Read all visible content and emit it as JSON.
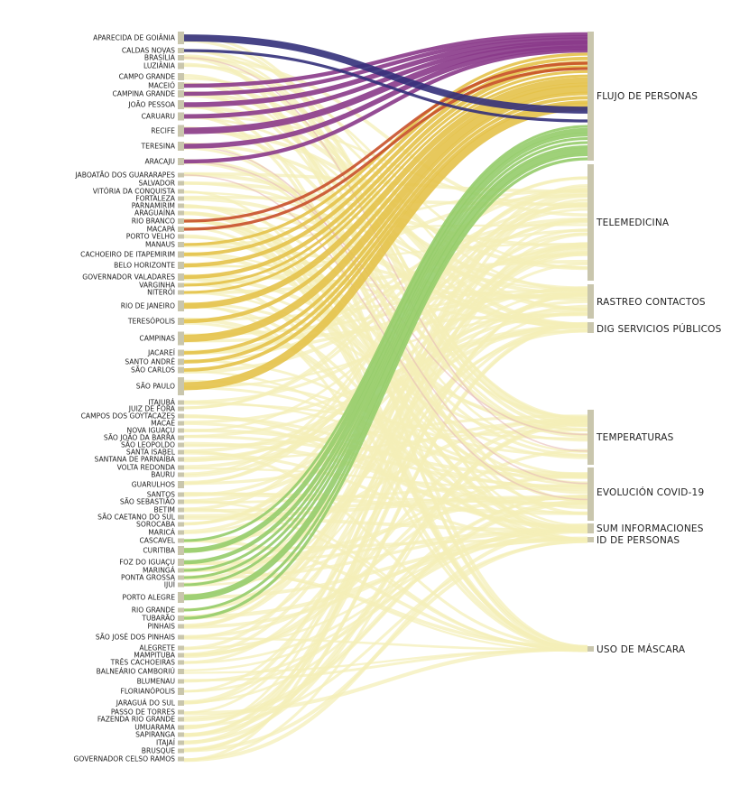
{
  "sources": [
    "APARECIDA DE GOIÂNIA",
    "CALDAS NOVAS",
    "BRASÍLIA",
    "LUZIÂNIA",
    "CAMPO GRANDE",
    "MACEIÓ",
    "CAMPINA GRANDE",
    "JOÃO PESSOA",
    "CARUARU",
    "RECIFE",
    "TERESINA",
    "ARACAJU",
    "JABOATÃO DOS GUARARAPES",
    "SALVADOR",
    "VITÓRIA DA CONQUISTA",
    "FORTALEZA",
    "PARNAMIRIM",
    "ARAGUAÍNA",
    "RIO BRANCO",
    "MACAPÁ",
    "PORTO VELHO",
    "MANAUS",
    "CACHOEIRO DE ITAPEMIRIM",
    "BELO HORIZONTE",
    "GOVERNADOR VALADARES",
    "VARGINHA",
    "NITERÓI",
    "RIO DE JANEIRO",
    "TERESÓPOLIS",
    "CAMPINAS",
    "JACAREÍ",
    "SANTO ANDRÉ",
    "SÃO CARLOS",
    "SÃO PAULO",
    "ITAJUBÁ",
    "JUIZ DE FORA",
    "CAMPOS DOS GOYTACAZES",
    "MACAÉ",
    "NOVA IGUAÇU",
    "SÃO JOÃO DA BARRA",
    "SÃO LEOPOLDO",
    "SANTA ISABEL",
    "SANTANA DE PARNAÍBA",
    "VOLTA REDONDA",
    "BAURU",
    "GUARULHOS",
    "SANTOS",
    "SÃO SEBASTIÃO",
    "BETIM",
    "SÃO CAETANO DO SUL",
    "SOROCABA",
    "MARICÁ",
    "CASCAVEL",
    "CURITIBA",
    "FOZ DO IGUAÇU",
    "MARINGÁ",
    "PONTA GROSSA",
    "IJUÍ",
    "PORTO ALEGRE",
    "RIO GRANDE",
    "TUBARÃO",
    "PINHAIS",
    "SÃO JOSÉ DOS PINHAIS",
    "ALEGRETE",
    "MAMPITUBA",
    "TRÊS CACHOEIRAS",
    "BALNEÁRIO CAMBORIÚ",
    "BLUMENAU",
    "FLORIANÓPOLIS",
    "JARAGUÁ DO SUL",
    "PASSO DE TORRES",
    "FAZENDA RIO GRANDE",
    "UMUARAMA",
    "SAPIRANGA",
    "ITAJAÍ",
    "BRUSQUE",
    "GOVERNADOR CELSO RAMOS"
  ],
  "targets": [
    "FLUJO DE PERSONAS",
    "TELEMEDICINA",
    "RASTREO CONTACTOS",
    "DIG SERVICIOS PÚBLICOS",
    "TEMPERATURAS",
    "EVOLUCIÓN COVID-19",
    "SUM INFORMACIONES",
    "ID DE PERSONAS",
    "USO DE MÁSCARA"
  ],
  "colors": {
    "node": "#c9c6ad",
    "navy": "#33307a",
    "purple": "#8a3a8a",
    "red": "#c8502a",
    "yellow": "#e4c24a",
    "green": "#95cc6a",
    "faint": "#f4efb8",
    "faint_red": "#e6b9b5"
  },
  "highlight_flows": [
    {
      "from": "APARECIDA DE GOIÂNIA",
      "to": "FLUJO DE PERSONAS",
      "color": "navy"
    },
    {
      "from": "CALDAS NOVAS",
      "to": "FLUJO DE PERSONAS",
      "color": "navy"
    },
    {
      "from": "MACEIÓ",
      "to": "FLUJO DE PERSONAS",
      "color": "purple"
    },
    {
      "from": "CAMPINA GRANDE",
      "to": "FLUJO DE PERSONAS",
      "color": "purple"
    },
    {
      "from": "JOÃO PESSOA",
      "to": "FLUJO DE PERSONAS",
      "color": "purple"
    },
    {
      "from": "CARUARU",
      "to": "FLUJO DE PERSONAS",
      "color": "purple"
    },
    {
      "from": "RECIFE",
      "to": "FLUJO DE PERSONAS",
      "color": "purple"
    },
    {
      "from": "TERESINA",
      "to": "FLUJO DE PERSONAS",
      "color": "purple"
    },
    {
      "from": "ARACAJU",
      "to": "FLUJO DE PERSONAS",
      "color": "purple"
    },
    {
      "from": "RIO BRANCO",
      "to": "FLUJO DE PERSONAS",
      "color": "red"
    },
    {
      "from": "MACAPÁ",
      "to": "FLUJO DE PERSONAS",
      "color": "red"
    },
    {
      "from": "MANAUS",
      "to": "FLUJO DE PERSONAS",
      "color": "yellow"
    },
    {
      "from": "CACHOEIRO DE ITAPEMIRIM",
      "to": "FLUJO DE PERSONAS",
      "color": "yellow"
    },
    {
      "from": "BELO HORIZONTE",
      "to": "FLUJO DE PERSONAS",
      "color": "yellow"
    },
    {
      "from": "GOVERNADOR VALADARES",
      "to": "FLUJO DE PERSONAS",
      "color": "yellow"
    },
    {
      "from": "VARGINHA",
      "to": "FLUJO DE PERSONAS",
      "color": "yellow"
    },
    {
      "from": "NITERÓI",
      "to": "FLUJO DE PERSONAS",
      "color": "yellow"
    },
    {
      "from": "RIO DE JANEIRO",
      "to": "FLUJO DE PERSONAS",
      "color": "yellow"
    },
    {
      "from": "TERESÓPOLIS",
      "to": "FLUJO DE PERSONAS",
      "color": "yellow"
    },
    {
      "from": "CAMPINAS",
      "to": "FLUJO DE PERSONAS",
      "color": "yellow"
    },
    {
      "from": "JACAREÍ",
      "to": "FLUJO DE PERSONAS",
      "color": "yellow"
    },
    {
      "from": "SANTO ANDRÉ",
      "to": "FLUJO DE PERSONAS",
      "color": "yellow"
    },
    {
      "from": "SÃO CARLOS",
      "to": "FLUJO DE PERSONAS",
      "color": "yellow"
    },
    {
      "from": "SÃO PAULO",
      "to": "FLUJO DE PERSONAS",
      "color": "yellow"
    },
    {
      "from": "CASCAVEL",
      "to": "FLUJO DE PERSONAS",
      "color": "green"
    },
    {
      "from": "CURITIBA",
      "to": "FLUJO DE PERSONAS",
      "color": "green"
    },
    {
      "from": "FOZ DO IGUAÇU",
      "to": "FLUJO DE PERSONAS",
      "color": "green"
    },
    {
      "from": "MARINGÁ",
      "to": "FLUJO DE PERSONAS",
      "color": "green"
    },
    {
      "from": "PONTA GROSSA",
      "to": "FLUJO DE PERSONAS",
      "color": "green"
    },
    {
      "from": "IJUÍ",
      "to": "FLUJO DE PERSONAS",
      "color": "green"
    },
    {
      "from": "PORTO ALEGRE",
      "to": "FLUJO DE PERSONAS",
      "color": "green"
    },
    {
      "from": "RIO GRANDE",
      "to": "FLUJO DE PERSONAS",
      "color": "green"
    },
    {
      "from": "TUBARÃO",
      "to": "FLUJO DE PERSONAS",
      "color": "green"
    }
  ]
}
